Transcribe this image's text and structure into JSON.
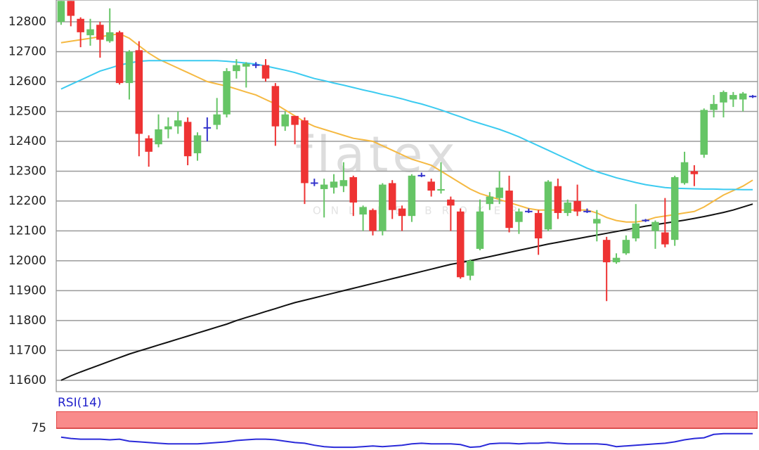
{
  "chart_data": [
    {
      "type": "candlestick",
      "watermark": "flatex",
      "watermark_sub": "ONLINE BROKER",
      "ylim": [
        11562,
        12873
      ],
      "yticks": [
        11600,
        11700,
        11800,
        11900,
        12000,
        12100,
        12200,
        12300,
        12400,
        12500,
        12600,
        12700,
        12800
      ],
      "grid": true,
      "up_color": "#66c566",
      "down_color": "#ee3333",
      "flat_color": "#3333cc",
      "open": [
        12800,
        12870,
        12810,
        12755,
        12790,
        12735,
        12765,
        12595,
        12705,
        12410,
        12390,
        12440,
        12450,
        12465,
        12360,
        12445,
        12455,
        12490,
        12635,
        12650,
        12655,
        12655,
        12585,
        12450,
        12485,
        12470,
        12260,
        12240,
        12245,
        12250,
        12280,
        12155,
        12170,
        12100,
        12260,
        12175,
        12150,
        12285,
        12265,
        12235,
        12205,
        12165,
        11950,
        12040,
        12190,
        12210,
        12235,
        12130,
        12165,
        12160,
        12105,
        12250,
        12160,
        12200,
        12165,
        12125,
        12070,
        11995,
        12025,
        12075,
        12135,
        12100,
        12095,
        12070,
        12260,
        12300,
        12355,
        12505,
        12530,
        12540,
        12540,
        12550
      ],
      "high": [
        12870,
        12870,
        12815,
        12810,
        12800,
        12845,
        12770,
        12705,
        12735,
        12420,
        12490,
        12480,
        12500,
        12480,
        12430,
        12480,
        12545,
        12645,
        12675,
        12665,
        12665,
        12675,
        12595,
        12500,
        12485,
        12480,
        12275,
        12275,
        12290,
        12330,
        12285,
        12185,
        12175,
        12260,
        12270,
        12185,
        12290,
        12295,
        12275,
        12330,
        12215,
        12175,
        12005,
        12205,
        12230,
        12300,
        12285,
        12175,
        12175,
        12170,
        12270,
        12275,
        12205,
        12255,
        12175,
        12170,
        12080,
        12025,
        12085,
        12190,
        12140,
        12135,
        12210,
        12285,
        12365,
        12320,
        12510,
        12555,
        12570,
        12565,
        12565,
        12555
      ],
      "low": [
        12790,
        12785,
        12715,
        12720,
        12680,
        12730,
        12590,
        12540,
        12350,
        12315,
        12380,
        12410,
        12425,
        12320,
        12335,
        12400,
        12440,
        12480,
        12610,
        12580,
        12645,
        12600,
        12385,
        12435,
        12390,
        12190,
        12250,
        12145,
        12225,
        12230,
        12150,
        12100,
        12085,
        12085,
        12140,
        12100,
        12130,
        12280,
        12215,
        12225,
        12100,
        11940,
        11935,
        12035,
        12170,
        12190,
        12095,
        12090,
        12160,
        12020,
        12100,
        12140,
        12150,
        12150,
        12160,
        12065,
        11865,
        11990,
        12020,
        12065,
        12130,
        12040,
        12045,
        12050,
        12255,
        12250,
        12345,
        12480,
        12480,
        12515,
        12500,
        12545
      ],
      "close": [
        12870,
        12820,
        12765,
        12775,
        12740,
        12765,
        12595,
        12700,
        12425,
        12365,
        12440,
        12450,
        12470,
        12350,
        12420,
        12445,
        12490,
        12635,
        12655,
        12660,
        12655,
        12610,
        12450,
        12490,
        12455,
        12260,
        12260,
        12255,
        12265,
        12270,
        12195,
        12180,
        12100,
        12255,
        12170,
        12150,
        12285,
        12285,
        12235,
        12240,
        12185,
        11945,
        12000,
        12165,
        12215,
        12245,
        12110,
        12165,
        12165,
        12075,
        12265,
        12160,
        12195,
        12165,
        12165,
        12140,
        11995,
        12010,
        12070,
        12125,
        12135,
        12130,
        12055,
        12280,
        12330,
        12290,
        12505,
        12525,
        12565,
        12555,
        12560,
        12550
      ],
      "overlays": [
        {
          "color": "#f5b942",
          "values": [
            12730,
            12735,
            12740,
            12745,
            12750,
            12755,
            12760,
            12745,
            12720,
            12695,
            12675,
            12660,
            12645,
            12630,
            12615,
            12600,
            12592,
            12585,
            12575,
            12565,
            12555,
            12540,
            12525,
            12505,
            12485,
            12465,
            12450,
            12440,
            12430,
            12420,
            12410,
            12405,
            12400,
            12385,
            12370,
            12355,
            12340,
            12330,
            12320,
            12300,
            12280,
            12260,
            12240,
            12225,
            12215,
            12205,
            12195,
            12185,
            12175,
            12170,
            12170,
            12170,
            12170,
            12170,
            12170,
            12160,
            12145,
            12135,
            12130,
            12130,
            12135,
            12145,
            12150,
            12155,
            12160,
            12165,
            12180,
            12200,
            12220,
            12235,
            12250,
            12270
          ]
        },
        {
          "color": "#3ccbf0",
          "values": [
            12575,
            12590,
            12605,
            12620,
            12635,
            12645,
            12655,
            12662,
            12668,
            12670,
            12670,
            12670,
            12670,
            12670,
            12670,
            12670,
            12670,
            12668,
            12665,
            12662,
            12658,
            12652,
            12645,
            12638,
            12630,
            12620,
            12610,
            12603,
            12595,
            12588,
            12580,
            12572,
            12565,
            12557,
            12550,
            12542,
            12533,
            12525,
            12515,
            12505,
            12493,
            12482,
            12470,
            12460,
            12450,
            12440,
            12428,
            12415,
            12400,
            12385,
            12370,
            12355,
            12340,
            12325,
            12310,
            12298,
            12288,
            12278,
            12270,
            12262,
            12255,
            12250,
            12245,
            12243,
            12242,
            12241,
            12240,
            12240,
            12239,
            12239,
            12238,
            12238
          ]
        },
        {
          "color": "#111111",
          "values": [
            11600,
            11615,
            11628,
            11640,
            11652,
            11664,
            11676,
            11688,
            11698,
            11708,
            11718,
            11728,
            11738,
            11748,
            11758,
            11768,
            11778,
            11788,
            11800,
            11810,
            11820,
            11830,
            11840,
            11850,
            11860,
            11868,
            11876,
            11884,
            11892,
            11900,
            11908,
            11916,
            11924,
            11932,
            11940,
            11948,
            11956,
            11964,
            11972,
            11980,
            11988,
            11994,
            12000,
            12007,
            12014,
            12021,
            12028,
            12035,
            12042,
            12049,
            12056,
            12062,
            12068,
            12074,
            12080,
            12086,
            12092,
            12098,
            12104,
            12110,
            12116,
            12121,
            12126,
            12131,
            12136,
            12142,
            12148,
            12155,
            12162,
            12170,
            12180,
            12190
          ]
        }
      ]
    },
    {
      "type": "line",
      "title": "RSI(14)",
      "ylim": [
        43,
        100
      ],
      "yticks": [
        75
      ],
      "band": [
        75,
        100
      ],
      "band_color": "#f98b8b",
      "color": "#2b2bd9",
      "values": [
        62,
        60,
        59,
        59,
        59,
        58,
        59,
        56,
        55,
        54,
        53,
        52,
        52,
        52,
        52,
        53,
        54,
        55,
        57,
        58,
        59,
        59,
        58,
        56,
        54,
        53,
        50,
        48,
        47,
        47,
        47,
        48,
        49,
        48,
        49,
        50,
        52,
        53,
        52,
        52,
        52,
        51,
        47,
        48,
        52,
        53,
        53,
        52,
        53,
        53,
        54,
        53,
        52,
        52,
        52,
        52,
        51,
        48,
        49,
        50,
        51,
        52,
        53,
        55,
        58,
        60,
        61,
        66,
        67,
        67,
        67,
        67
      ]
    }
  ]
}
